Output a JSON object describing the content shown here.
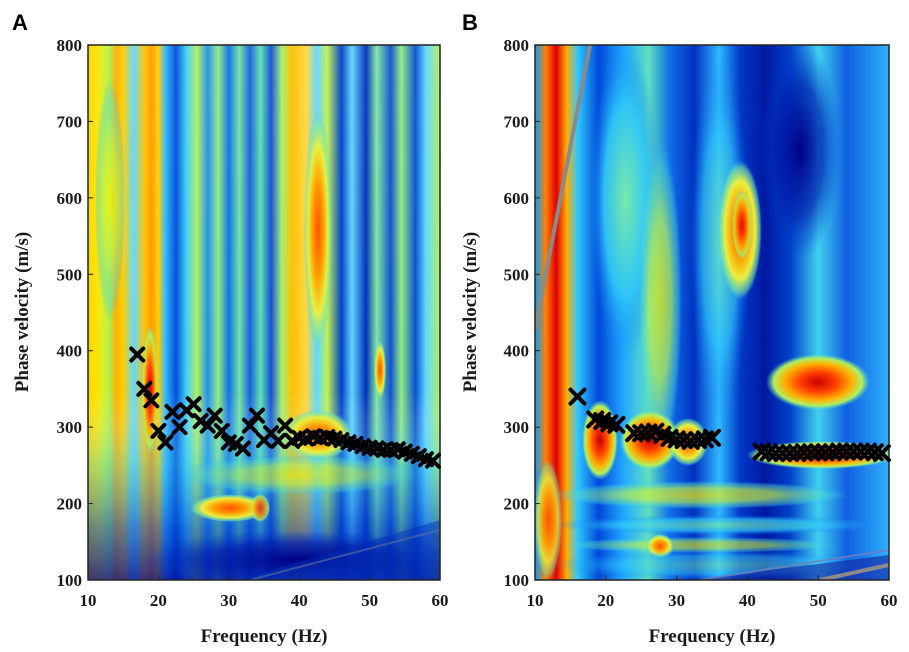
{
  "chart_data": [
    {
      "type": "heatmap",
      "panel": "A",
      "xlabel": "Frequency (Hz)",
      "ylabel": "Phase velocity (m/s)",
      "xlim": [
        10,
        60
      ],
      "ylim": [
        100,
        800
      ],
      "xticks": [
        10,
        20,
        30,
        40,
        50,
        60
      ],
      "yticks": [
        100,
        200,
        300,
        400,
        500,
        600,
        700,
        800
      ],
      "colormap": "jet",
      "grid": false,
      "picks_marker": "x",
      "picks_color": "#000000",
      "picks": [
        [
          17,
          395
        ],
        [
          18,
          350
        ],
        [
          19,
          335
        ],
        [
          20,
          295
        ],
        [
          21,
          280
        ],
        [
          22,
          320
        ],
        [
          23,
          300
        ],
        [
          24,
          322
        ],
        [
          25,
          330
        ],
        [
          26,
          308
        ],
        [
          27,
          302
        ],
        [
          28,
          315
        ],
        [
          29,
          295
        ],
        [
          30,
          280
        ],
        [
          31,
          278
        ],
        [
          32,
          272
        ],
        [
          33,
          302
        ],
        [
          34,
          315
        ],
        [
          35,
          283
        ],
        [
          36,
          292
        ],
        [
          37,
          282
        ],
        [
          38,
          302
        ],
        [
          39,
          282
        ],
        [
          40,
          286
        ],
        [
          41,
          285
        ],
        [
          42,
          288
        ],
        [
          43,
          286
        ],
        [
          44,
          287
        ],
        [
          45,
          285
        ],
        [
          46,
          283
        ],
        [
          47,
          280
        ],
        [
          48,
          278
        ],
        [
          49,
          275
        ],
        [
          50,
          273
        ],
        [
          51,
          272
        ],
        [
          52,
          270
        ],
        [
          53,
          270
        ],
        [
          54,
          271
        ],
        [
          55,
          268
        ],
        [
          56,
          265
        ],
        [
          57,
          262
        ],
        [
          58,
          258
        ],
        [
          59,
          256
        ]
      ]
    },
    {
      "type": "heatmap",
      "panel": "B",
      "xlabel": "Frequency (Hz)",
      "ylabel": "Phase velocity (m/s)",
      "xlim": [
        10,
        60
      ],
      "ylim": [
        100,
        800
      ],
      "xticks": [
        10,
        20,
        30,
        40,
        50,
        60
      ],
      "yticks": [
        100,
        200,
        300,
        400,
        500,
        600,
        700,
        800
      ],
      "colormap": "jet",
      "grid": false,
      "picks_marker": "x",
      "picks_color": "#000000",
      "picks": [
        [
          16.0,
          340
        ],
        [
          18.5,
          310
        ],
        [
          19.5,
          308
        ],
        [
          20.5,
          305
        ],
        [
          21.5,
          303
        ],
        [
          24.0,
          292
        ],
        [
          25.0,
          292
        ],
        [
          26.0,
          293
        ],
        [
          27.0,
          294
        ],
        [
          28.0,
          290
        ],
        [
          29.0,
          286
        ],
        [
          30.0,
          284
        ],
        [
          31.0,
          283
        ],
        [
          32.0,
          282
        ],
        [
          33.0,
          283
        ],
        [
          34.0,
          284
        ],
        [
          35.0,
          286
        ],
        [
          42.0,
          268
        ],
        [
          43.0,
          267
        ],
        [
          44.0,
          266
        ],
        [
          45.0,
          266
        ],
        [
          46.0,
          266
        ],
        [
          47.0,
          266
        ],
        [
          48.0,
          267
        ],
        [
          49.0,
          267
        ],
        [
          50.0,
          267
        ],
        [
          51.0,
          267
        ],
        [
          52.0,
          267
        ],
        [
          53.0,
          268
        ],
        [
          54.0,
          268
        ],
        [
          55.0,
          268
        ],
        [
          56.0,
          268
        ],
        [
          57.0,
          268
        ],
        [
          58.0,
          267
        ],
        [
          59.0,
          266
        ]
      ],
      "boundary_lines_color": "#8a8a8a"
    }
  ]
}
